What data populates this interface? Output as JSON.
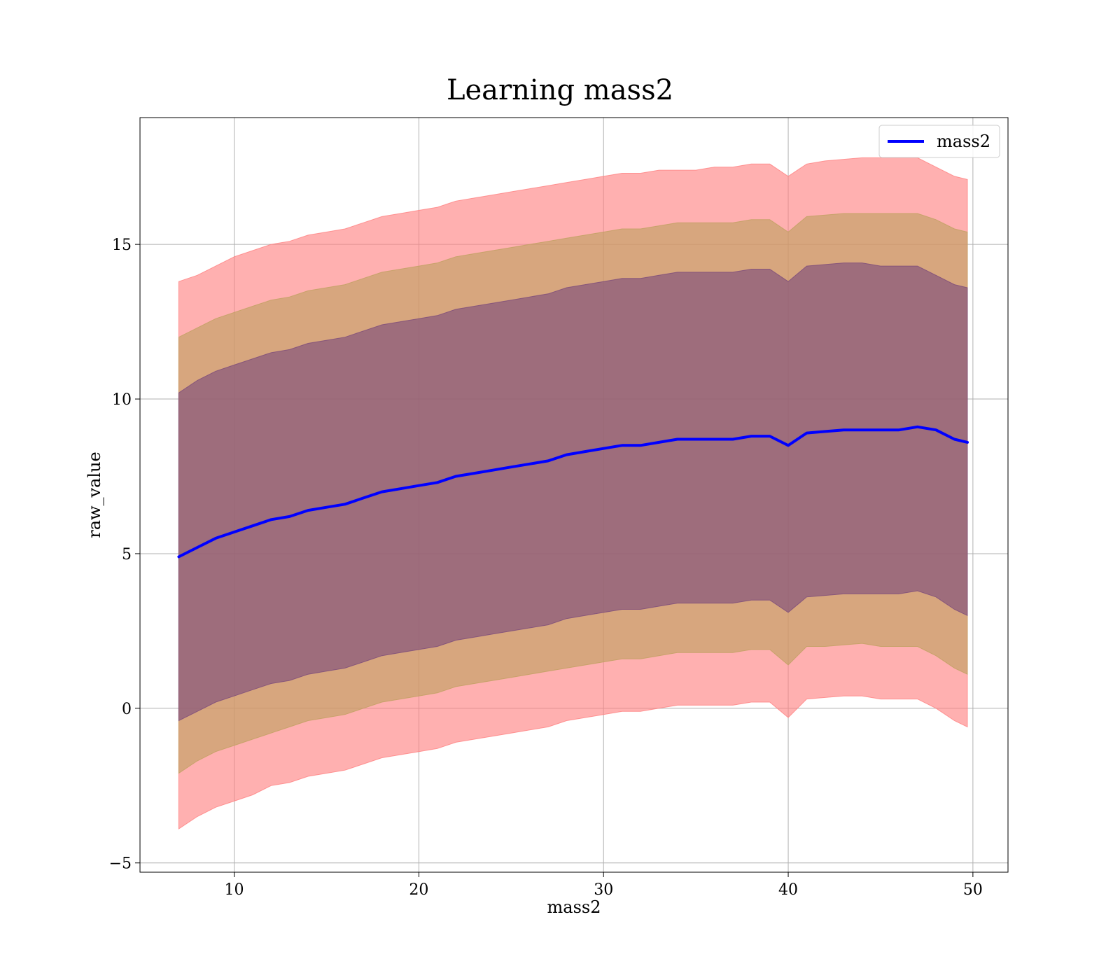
{
  "chart_data": {
    "type": "line",
    "title": "Learning mass2",
    "xlabel": "mass2",
    "ylabel": "raw_value",
    "xlim": [
      4.9,
      51.9
    ],
    "ylim": [
      -5.3,
      19.1
    ],
    "xticks": [
      10,
      20,
      30,
      40,
      50
    ],
    "xtick_labels": [
      "10",
      "20",
      "30",
      "40",
      "50"
    ],
    "yticks": [
      -5,
      0,
      5,
      10,
      15
    ],
    "ytick_labels": [
      "−5",
      "0",
      "5",
      "10",
      "15"
    ],
    "grid": true,
    "legend": {
      "placement": "top-right",
      "entries": [
        "mass2"
      ]
    },
    "x": [
      7,
      8,
      9,
      10,
      11,
      12,
      13,
      14,
      15,
      16,
      17,
      18,
      19,
      20,
      21,
      22,
      23,
      24,
      25,
      26,
      27,
      28,
      29,
      30,
      31,
      32,
      33,
      34,
      35,
      36,
      37,
      38,
      39,
      40,
      41,
      42,
      43,
      44,
      45,
      46,
      47,
      48,
      49,
      49.7
    ],
    "series": [
      {
        "name": "mass2",
        "color": "#0000ff",
        "values": [
          4.9,
          5.2,
          5.5,
          5.7,
          5.9,
          6.1,
          6.2,
          6.4,
          6.5,
          6.6,
          6.8,
          7.0,
          7.1,
          7.2,
          7.3,
          7.5,
          7.6,
          7.7,
          7.8,
          7.9,
          8.0,
          8.2,
          8.3,
          8.4,
          8.5,
          8.5,
          8.6,
          8.7,
          8.7,
          8.7,
          8.7,
          8.8,
          8.8,
          8.5,
          8.9,
          8.95,
          9.0,
          9.0,
          9.0,
          9.0,
          9.1,
          9.0,
          8.7,
          8.6
        ]
      }
    ],
    "bands": [
      {
        "color": "#ff8080",
        "lower": [
          -3.9,
          -3.5,
          -3.2,
          -3.0,
          -2.8,
          -2.5,
          -2.4,
          -2.2,
          -2.1,
          -2.0,
          -1.8,
          -1.6,
          -1.5,
          -1.4,
          -1.3,
          -1.1,
          -1.0,
          -0.9,
          -0.8,
          -0.7,
          -0.6,
          -0.4,
          -0.3,
          -0.2,
          -0.1,
          -0.1,
          0.0,
          0.1,
          0.1,
          0.1,
          0.1,
          0.2,
          0.2,
          -0.3,
          0.3,
          0.35,
          0.4,
          0.4,
          0.3,
          0.3,
          0.3,
          0.0,
          -0.4,
          -0.6
        ],
        "upper": [
          13.8,
          14.0,
          14.3,
          14.6,
          14.8,
          15.0,
          15.1,
          15.3,
          15.4,
          15.5,
          15.7,
          15.9,
          16.0,
          16.1,
          16.2,
          16.4,
          16.5,
          16.6,
          16.7,
          16.8,
          16.9,
          17.0,
          17.1,
          17.2,
          17.3,
          17.3,
          17.4,
          17.4,
          17.4,
          17.5,
          17.5,
          17.6,
          17.6,
          17.2,
          17.6,
          17.7,
          17.75,
          17.8,
          17.8,
          17.8,
          17.8,
          17.5,
          17.2,
          17.1
        ]
      },
      {
        "color": "#bfa060",
        "lower": [
          -2.1,
          -1.7,
          -1.4,
          -1.2,
          -1.0,
          -0.8,
          -0.6,
          -0.4,
          -0.3,
          -0.2,
          0.0,
          0.2,
          0.3,
          0.4,
          0.5,
          0.7,
          0.8,
          0.9,
          1.0,
          1.1,
          1.2,
          1.3,
          1.4,
          1.5,
          1.6,
          1.6,
          1.7,
          1.8,
          1.8,
          1.8,
          1.8,
          1.9,
          1.9,
          1.4,
          2.0,
          2.0,
          2.05,
          2.1,
          2.0,
          2.0,
          2.0,
          1.7,
          1.3,
          1.1
        ],
        "upper": [
          12.0,
          12.3,
          12.6,
          12.8,
          13.0,
          13.2,
          13.3,
          13.5,
          13.6,
          13.7,
          13.9,
          14.1,
          14.2,
          14.3,
          14.4,
          14.6,
          14.7,
          14.8,
          14.9,
          15.0,
          15.1,
          15.2,
          15.3,
          15.4,
          15.5,
          15.5,
          15.6,
          15.7,
          15.7,
          15.7,
          15.7,
          15.8,
          15.8,
          15.4,
          15.9,
          15.95,
          16.0,
          16.0,
          16.0,
          16.0,
          16.0,
          15.8,
          15.5,
          15.4
        ]
      },
      {
        "color": "#7a4a7a",
        "lower": [
          -0.4,
          -0.1,
          0.2,
          0.4,
          0.6,
          0.8,
          0.9,
          1.1,
          1.2,
          1.3,
          1.5,
          1.7,
          1.8,
          1.9,
          2.0,
          2.2,
          2.3,
          2.4,
          2.5,
          2.6,
          2.7,
          2.9,
          3.0,
          3.1,
          3.2,
          3.2,
          3.3,
          3.4,
          3.4,
          3.4,
          3.4,
          3.5,
          3.5,
          3.1,
          3.6,
          3.65,
          3.7,
          3.7,
          3.7,
          3.7,
          3.8,
          3.6,
          3.2,
          3.0
        ],
        "upper": [
          10.2,
          10.6,
          10.9,
          11.1,
          11.3,
          11.5,
          11.6,
          11.8,
          11.9,
          12.0,
          12.2,
          12.4,
          12.5,
          12.6,
          12.7,
          12.9,
          13.0,
          13.1,
          13.2,
          13.3,
          13.4,
          13.6,
          13.7,
          13.8,
          13.9,
          13.9,
          14.0,
          14.1,
          14.1,
          14.1,
          14.1,
          14.2,
          14.2,
          13.8,
          14.3,
          14.35,
          14.4,
          14.4,
          14.3,
          14.3,
          14.3,
          14.0,
          13.7,
          13.6
        ]
      }
    ]
  }
}
